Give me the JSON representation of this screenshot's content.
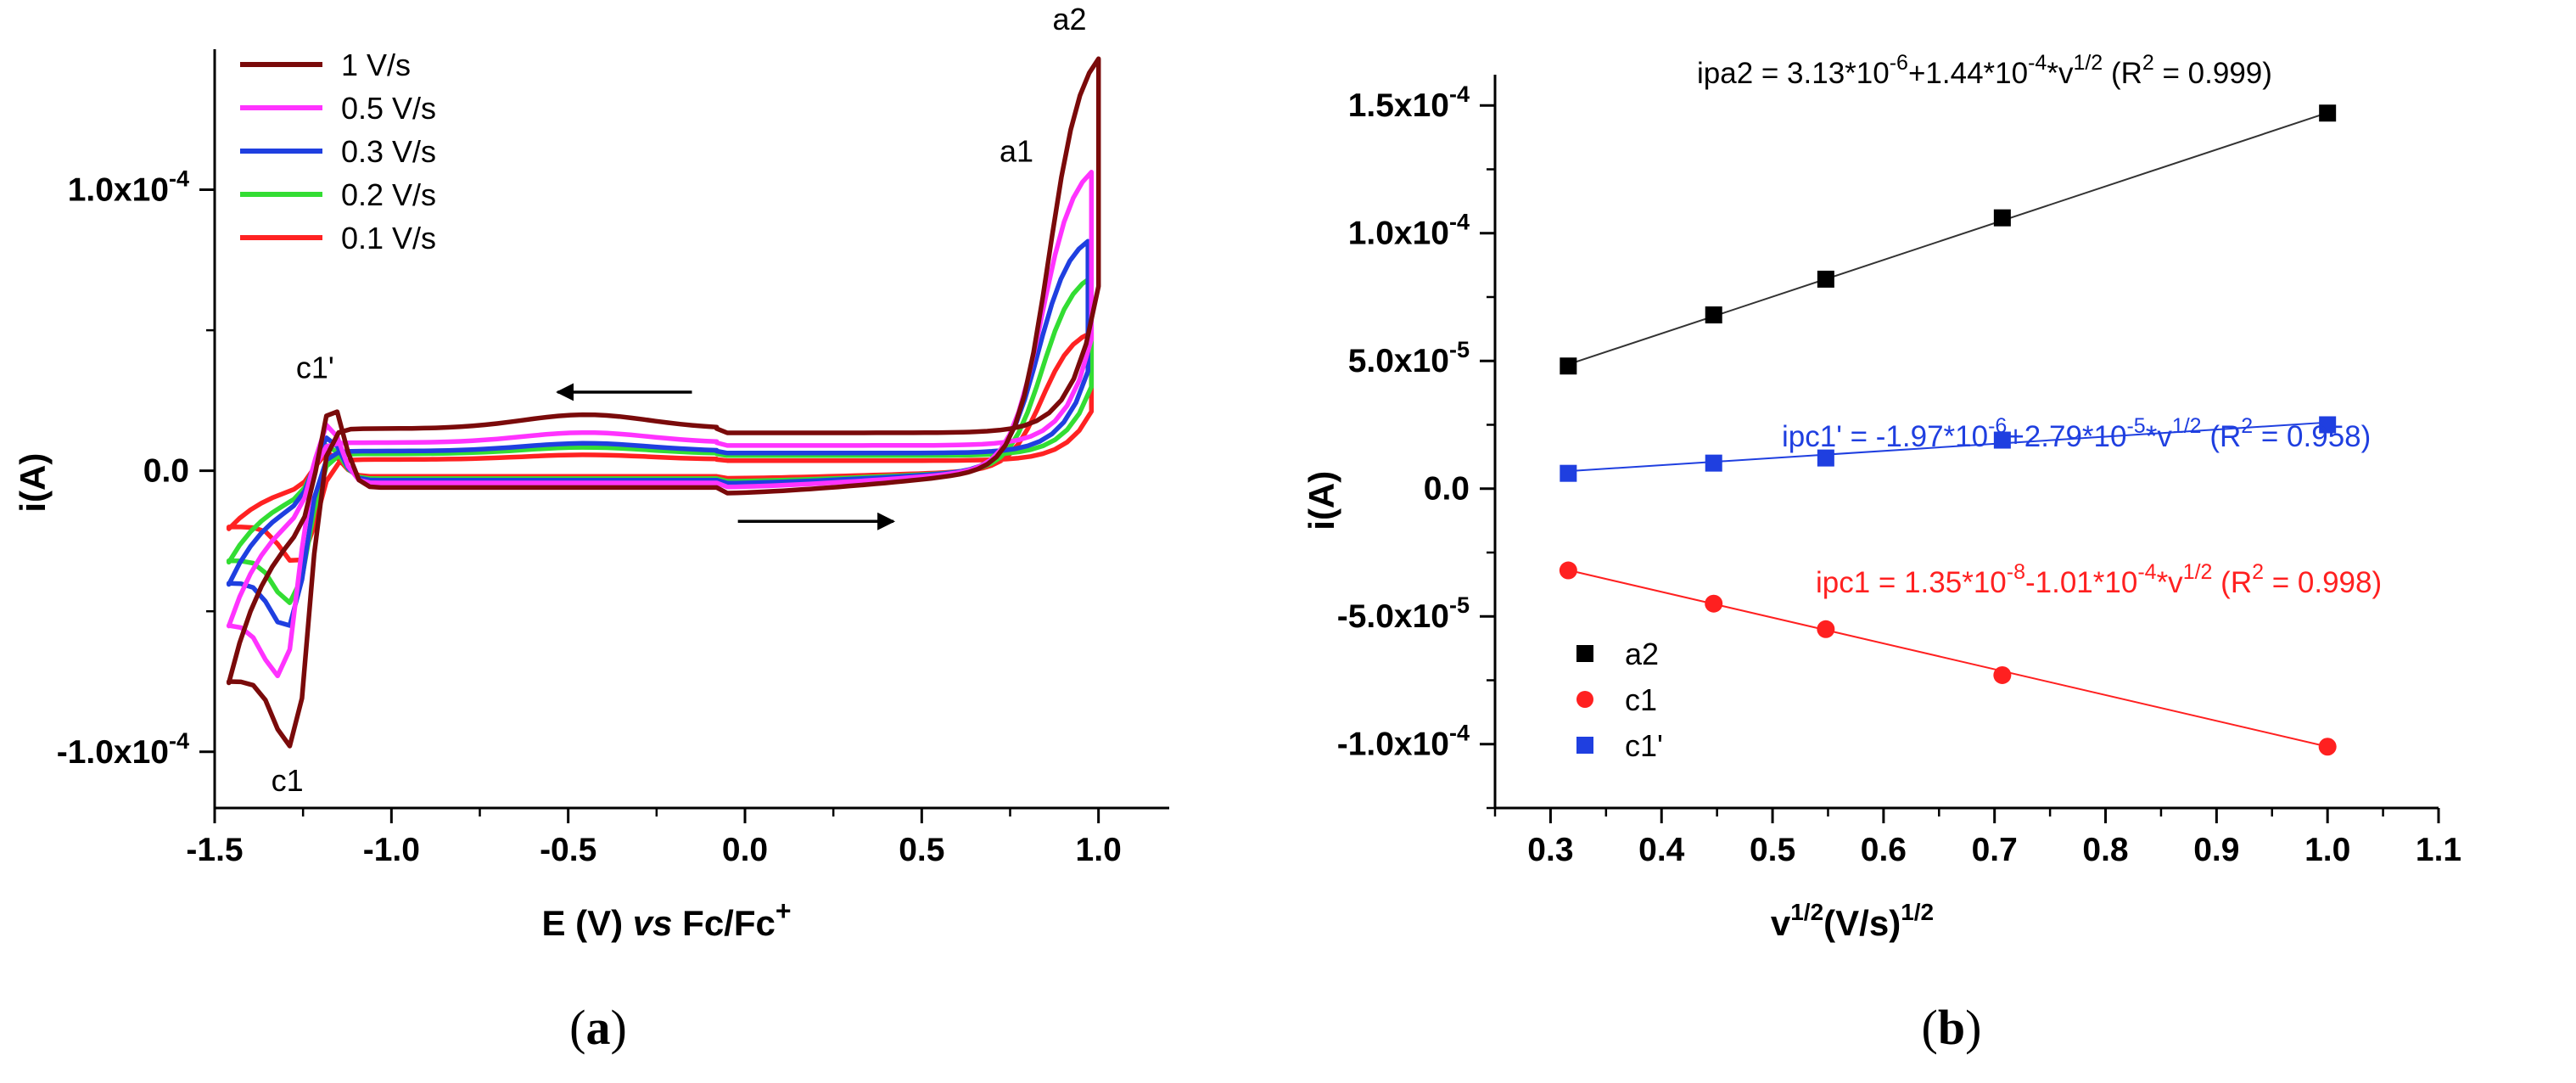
{
  "chart_data": [
    {
      "type": "line",
      "panel_label": "(a)",
      "xlabel_parts": {
        "pre": "E (V) ",
        "italic": "vs",
        "post": " Fc/Fc",
        "sup": "+"
      },
      "ylabel": "i(A)",
      "xlim": [
        -1.5,
        1.2
      ],
      "ylim": [
        -0.00012,
        0.00015
      ],
      "x_ticks": [
        -1.5,
        -1.0,
        -0.5,
        0.0,
        0.5,
        1.0
      ],
      "x_tick_labels": [
        "-1.5",
        "-1.0",
        "-0.5",
        "0.0",
        "0.5",
        "1.0"
      ],
      "y_ticks": [
        {
          "value": 0.0001,
          "mant": "1.0x10",
          "exp": "-4"
        },
        {
          "value": 0.0,
          "mant": "0.0",
          "exp": ""
        },
        {
          "value": -0.0001,
          "mant": "-1.0x10",
          "exp": "-4"
        }
      ],
      "scan_start_x": -0.05,
      "legend": [
        {
          "name": "  1 V/s",
          "color": "#7a0a0a"
        },
        {
          "name": "0.5 V/s",
          "color": "#ff33ff"
        },
        {
          "name": "0.3 V/s",
          "color": "#1f3fe0"
        },
        {
          "name": "0.2 V/s",
          "color": "#33dd33"
        },
        {
          "name": "0.1 V/s",
          "color": "#ff2222"
        }
      ],
      "series": [
        {
          "name": "1 V/s",
          "color": "#7a0a0a",
          "a2": {
            "x": 1.0,
            "y": 0.000149
          },
          "a1": {
            "x": 0.86,
            "y": 0.0001
          },
          "c1": {
            "x": -1.29,
            "y": -9.8e-05
          },
          "c1p": {
            "x": -1.17,
            "y": 2.5e-05
          },
          "plateau": 1.5e-05,
          "vertex_low": -1.46,
          "low_i": -7.5e-05
        },
        {
          "name": "0.5 V/s",
          "color": "#ff33ff",
          "a2": {
            "x": 0.98,
            "y": 0.000108
          },
          "c1": {
            "x": -1.32,
            "y": -7.3e-05
          },
          "c1p": {
            "x": -1.18,
            "y": 1.8e-05
          },
          "plateau": 1e-05,
          "vertex_low": -1.46,
          "low_i": -5.5e-05
        },
        {
          "name": "0.3 V/s",
          "color": "#1f3fe0",
          "a2": {
            "x": 0.97,
            "y": 8.3e-05
          },
          "c1": {
            "x": -1.3,
            "y": -5.6e-05
          },
          "c1p": {
            "x": -1.18,
            "y": 1.3e-05
          },
          "plateau": 7e-06,
          "vertex_low": -1.46,
          "low_i": -4e-05
        },
        {
          "name": "0.2 V/s",
          "color": "#33dd33",
          "a2": {
            "x": 0.98,
            "y": 7e-05
          },
          "c1": {
            "x": -1.29,
            "y": -4.7e-05
          },
          "c1p": {
            "x": -1.18,
            "y": 1e-05
          },
          "plateau": 6e-06,
          "vertex_low": -1.46,
          "low_i": -3.2e-05
        },
        {
          "name": "0.1 V/s",
          "color": "#ff2222",
          "a2": {
            "x": 0.98,
            "y": 5e-05
          },
          "c1": {
            "x": -1.27,
            "y": -3.3e-05
          },
          "c1p": {
            "x": -1.18,
            "y": 7e-06
          },
          "plateau": 4e-06,
          "vertex_low": -1.46,
          "low_i": -2e-05
        }
      ],
      "annotations": [
        {
          "text": "a2",
          "x": 0.87,
          "y": 0.000157
        },
        {
          "text": "a1",
          "x": 0.72,
          "y": 0.00011
        },
        {
          "text": "c1'",
          "x": -1.27,
          "y": 3.3e-05
        },
        {
          "text": "c1",
          "x": -1.34,
          "y": -0.000114
        }
      ]
    },
    {
      "type": "scatter",
      "panel_label": "(b)",
      "xlabel_parts": {
        "pre": "v",
        "sup1": "1/2",
        "mid": "(V/s)",
        "sup2": "1/2"
      },
      "ylabel": "i(A)",
      "xlim": [
        0.25,
        1.1
      ],
      "ylim": [
        -0.000125,
        0.000172
      ],
      "x_ticks": [
        0.3,
        0.4,
        0.5,
        0.6,
        0.7,
        0.8,
        0.9,
        1.0,
        1.1
      ],
      "x_tick_labels": [
        "0.3",
        "0.4",
        "0.5",
        "0.6",
        "0.7",
        "0.8",
        "0.9",
        "1.0",
        "1.1"
      ],
      "y_ticks": [
        {
          "value": 0.00015,
          "mant": "1.5x10",
          "exp": "-4"
        },
        {
          "value": 0.0001,
          "mant": "1.0x10",
          "exp": "-4"
        },
        {
          "value": 5e-05,
          "mant": "5.0x10",
          "exp": "-5"
        },
        {
          "value": 0.0,
          "mant": "0.0",
          "exp": ""
        },
        {
          "value": -5e-05,
          "mant": "-5.0x10",
          "exp": "-5"
        },
        {
          "value": -0.0001,
          "mant": "-1.0x10",
          "exp": "-4"
        }
      ],
      "x": [
        0.316,
        0.447,
        0.548,
        0.707,
        1.0
      ],
      "series": [
        {
          "name": "a2",
          "marker": "square",
          "color": "#000000",
          "line_color": "#333333",
          "values": [
            4.8e-05,
            6.8e-05,
            8.2e-05,
            0.000106,
            0.000147
          ],
          "fit": {
            "intercept": 3.13e-06,
            "slope": 0.000144
          }
        },
        {
          "name": "c1",
          "marker": "circle",
          "color": "#ff2020",
          "line_color": "#ff2020",
          "values": [
            -3.2e-05,
            -4.5e-05,
            -5.5e-05,
            -7.3e-05,
            -0.000101
          ],
          "fit": {
            "intercept": 1.35e-08,
            "slope": -0.000101
          }
        },
        {
          "name": "c1'",
          "marker": "square",
          "color": "#1f3fe0",
          "line_color": "#1f3fe0",
          "values": [
            6e-06,
            1e-05,
            1.2e-05,
            1.9e-05,
            2.5e-05
          ],
          "fit": {
            "intercept": -1.97e-06,
            "slope": 2.79e-05
          }
        }
      ],
      "equations": [
        {
          "color": "#000000",
          "parts": [
            [
              "ipa2 = 3.13*10",
              ""
            ],
            [
              "-6",
              "sup"
            ],
            [
              "+1.44*10",
              ""
            ],
            [
              "-4",
              "sup"
            ],
            [
              "*v",
              ""
            ],
            [
              "1/2",
              "sup"
            ],
            [
              " (R",
              ""
            ],
            [
              "2",
              "sup"
            ],
            [
              " = 0.999)",
              ""
            ]
          ]
        },
        {
          "color": "#1f3fe0",
          "parts": [
            [
              "ipc1' = -1.97*10",
              ""
            ],
            [
              "-6",
              "sup"
            ],
            [
              "+2.79*10",
              ""
            ],
            [
              "-5",
              "sup"
            ],
            [
              "*v",
              ""
            ],
            [
              "1/2",
              "sup"
            ],
            [
              " (R",
              ""
            ],
            [
              "2",
              "sup"
            ],
            [
              " = 0.958)",
              ""
            ]
          ]
        },
        {
          "color": "#ff2020",
          "parts": [
            [
              "ipc1 = 1.35*10",
              ""
            ],
            [
              "-8",
              "sup"
            ],
            [
              "-1.01*10",
              ""
            ],
            [
              "-4",
              "sup"
            ],
            [
              "*v",
              ""
            ],
            [
              "1/2",
              "sup"
            ],
            [
              " (R",
              ""
            ],
            [
              "2",
              "sup"
            ],
            [
              " = 0.998)",
              ""
            ]
          ]
        }
      ]
    }
  ]
}
